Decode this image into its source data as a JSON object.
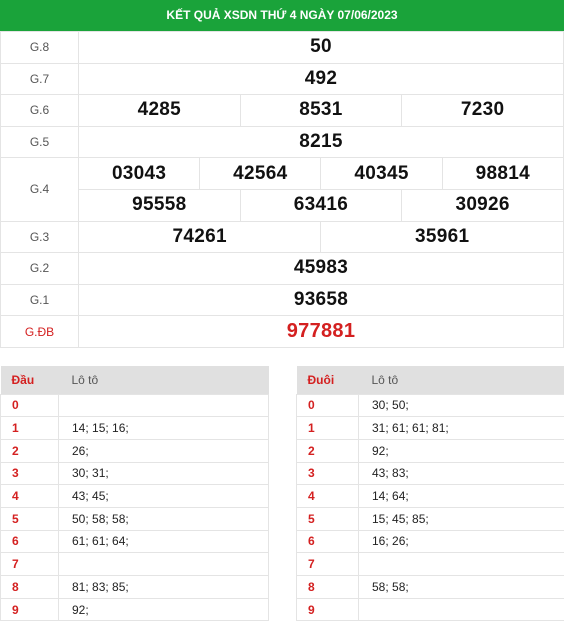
{
  "header": {
    "title": "KẾT QUẢ XSDN THỨ 4 NGÀY 07/06/2023"
  },
  "prizes": {
    "g8": {
      "label": "G.8",
      "values": [
        "50"
      ]
    },
    "g7": {
      "label": "G.7",
      "values": [
        "492"
      ]
    },
    "g6": {
      "label": "G.6",
      "values": [
        "4285",
        "8531",
        "7230"
      ]
    },
    "g5": {
      "label": "G.5",
      "values": [
        "8215"
      ]
    },
    "g4": {
      "label": "G.4",
      "row1": [
        "03043",
        "42564",
        "40345",
        "98814"
      ],
      "row2": [
        "95558",
        "63416",
        "30926"
      ]
    },
    "g3": {
      "label": "G.3",
      "values": [
        "74261",
        "35961"
      ]
    },
    "g2": {
      "label": "G.2",
      "values": [
        "45983"
      ]
    },
    "g1": {
      "label": "G.1",
      "values": [
        "93658"
      ]
    },
    "gdb": {
      "label": "G.ĐB",
      "values": [
        "977881"
      ]
    }
  },
  "dau": {
    "head_key": "Đầu",
    "head_val": "Lô tô",
    "rows": [
      {
        "k": "0",
        "v": ""
      },
      {
        "k": "1",
        "v": "14; 15; 16;"
      },
      {
        "k": "2",
        "v": "26;"
      },
      {
        "k": "3",
        "v": "30; 31;"
      },
      {
        "k": "4",
        "v": "43; 45;"
      },
      {
        "k": "5",
        "v": "50; 58; 58;"
      },
      {
        "k": "6",
        "v": "61; 61; 64;"
      },
      {
        "k": "7",
        "v": ""
      },
      {
        "k": "8",
        "v": "81; 83; 85;"
      },
      {
        "k": "9",
        "v": "92;"
      }
    ]
  },
  "duoi": {
    "head_key": "Đuôi",
    "head_val": "Lô tô",
    "rows": [
      {
        "k": "0",
        "v": "30; 50;"
      },
      {
        "k": "1",
        "v": "31; 61; 61; 81;"
      },
      {
        "k": "2",
        "v": "92;"
      },
      {
        "k": "3",
        "v": "43; 83;"
      },
      {
        "k": "4",
        "v": "14; 64;"
      },
      {
        "k": "5",
        "v": "15; 45; 85;"
      },
      {
        "k": "6",
        "v": "16; 26;"
      },
      {
        "k": "7",
        "v": ""
      },
      {
        "k": "8",
        "v": "58; 58;"
      },
      {
        "k": "9",
        "v": ""
      }
    ]
  }
}
